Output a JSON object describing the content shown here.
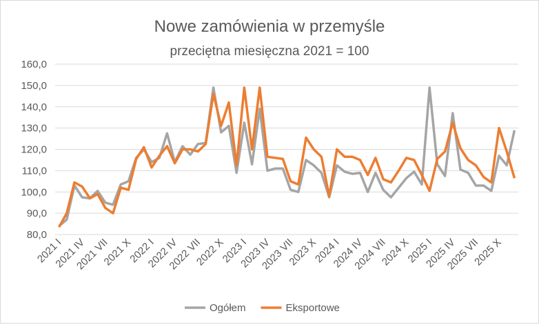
{
  "chart_data": {
    "type": "line",
    "title": "Nowe zamówienia w przemyśle",
    "subtitle": "przeciętna miesięczna 2021 = 100",
    "categories": [
      "2021 I",
      null,
      null,
      "2021 IV",
      null,
      null,
      "2021 VII",
      null,
      null,
      "2021 X",
      null,
      null,
      "2022 I",
      null,
      null,
      "2022 IV",
      null,
      null,
      "2022 VII",
      null,
      null,
      "2022 X",
      null,
      null,
      "2023 I",
      null,
      null,
      "2023 IV",
      null,
      null,
      "2023 VII",
      null,
      null,
      "2023 X",
      null,
      null,
      "2024 I",
      null,
      null,
      "2024 IV",
      null,
      null,
      "2024 VII",
      null,
      null,
      "2024 X",
      null,
      null,
      "2025 I",
      null,
      null,
      "2025 IV",
      null,
      null,
      "2025 VII",
      null,
      null,
      "2025 X",
      null,
      null
    ],
    "series": [
      {
        "name": "Ogółem",
        "color": "#a5a5a5",
        "values": [
          84,
          87,
          103,
          97.5,
          97,
          100.5,
          95,
          94,
          103.5,
          105,
          116,
          120,
          114,
          116,
          127.5,
          114,
          121.5,
          117.5,
          122.5,
          123,
          149,
          128,
          131,
          109,
          132.5,
          113,
          139,
          110,
          111,
          111,
          101,
          100,
          115,
          112.5,
          109,
          97.5,
          112.5,
          109.5,
          108.5,
          109,
          100,
          109,
          101,
          97.5,
          102,
          106.5,
          109.5,
          103.5,
          149,
          113,
          107.5,
          137,
          110.5,
          109,
          103,
          103,
          100.5,
          117,
          112.5,
          129
        ]
      },
      {
        "name": "Eksportowe",
        "color": "#ed7d31",
        "values": [
          83.5,
          90,
          104.5,
          102.5,
          97,
          99,
          92.5,
          90,
          102,
          101,
          115.5,
          121,
          111.5,
          117,
          121.5,
          113.5,
          120,
          120,
          119,
          122.5,
          146,
          131,
          142,
          112.5,
          149,
          120,
          149,
          116.5,
          116,
          115.5,
          105,
          103.5,
          125.5,
          120,
          116.5,
          98,
          120,
          116.5,
          116.5,
          115,
          108,
          116,
          106,
          104.5,
          110,
          116,
          115,
          108,
          100.5,
          115.5,
          119,
          132.5,
          120.5,
          115,
          112.5,
          107,
          104.5,
          130,
          119,
          106.5
        ]
      }
    ],
    "ylim": [
      80,
      160
    ],
    "yticks": [
      {
        "value": 80,
        "label": "80,0"
      },
      {
        "value": 90,
        "label": "90,0"
      },
      {
        "value": 100,
        "label": "100,0"
      },
      {
        "value": 110,
        "label": "110,0"
      },
      {
        "value": 120,
        "label": "120,0"
      },
      {
        "value": 130,
        "label": "130,0"
      },
      {
        "value": 140,
        "label": "140,0"
      },
      {
        "value": 150,
        "label": "150,0"
      },
      {
        "value": 160,
        "label": "160,0"
      }
    ],
    "grid": true,
    "legend": "bottom"
  }
}
